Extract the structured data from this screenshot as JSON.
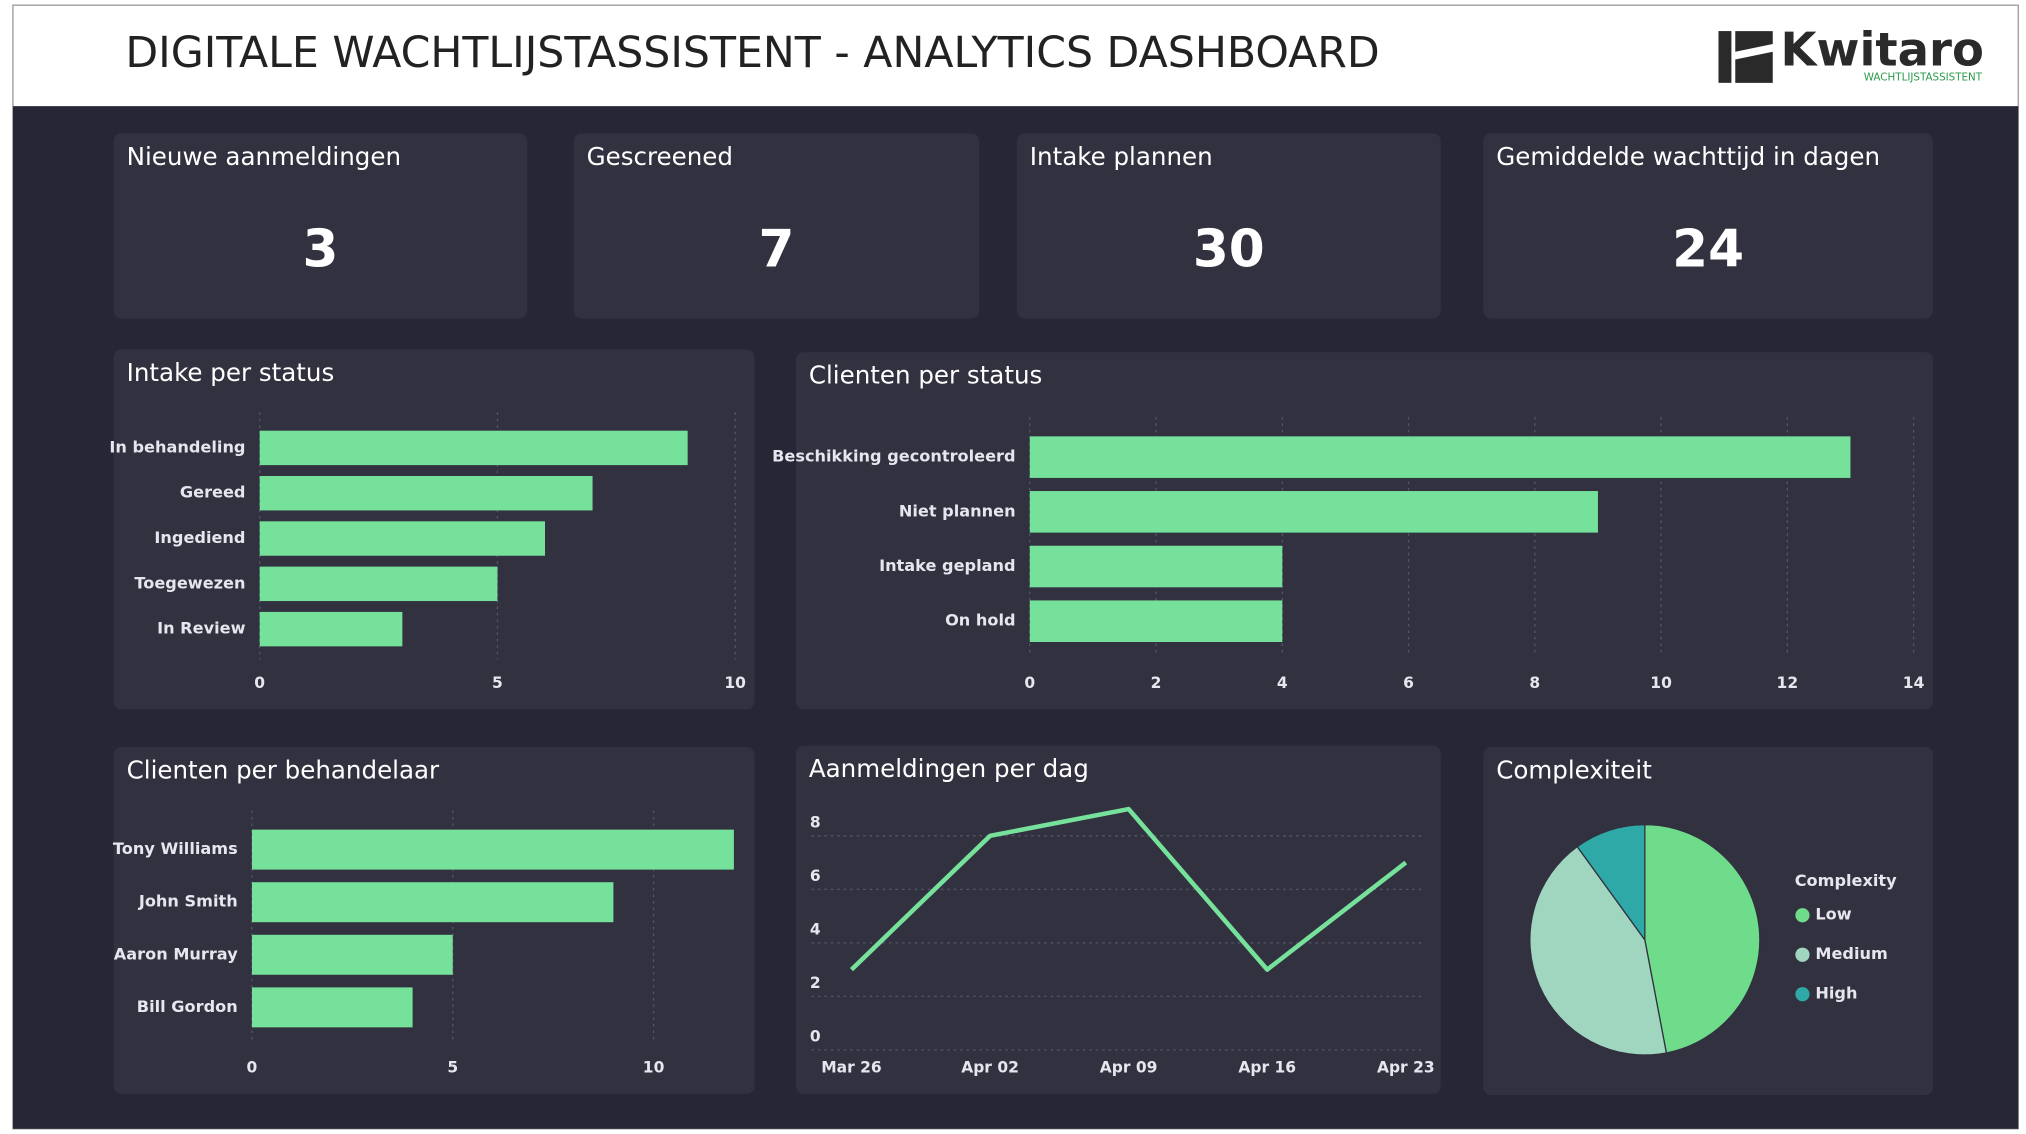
{
  "header": {
    "title": "DIGITALE WACHTLIJSTASSISTENT - ANALYTICS DASHBOARD",
    "logo": "Kwitaro",
    "logo_sub": "WACHTLIJSTASSISTENT"
  },
  "kpis": [
    {
      "label": "Nieuwe aanmeldingen",
      "value": 3
    },
    {
      "label": "Gescreened",
      "value": 7
    },
    {
      "label": "Intake plannen",
      "value": 30
    },
    {
      "label": "Gemiddelde wachttijd in dagen",
      "value": 24
    }
  ],
  "chart_data": [
    {
      "type": "bar",
      "orientation": "horizontal",
      "title": "Intake per status",
      "categories": [
        "In behandeling",
        "Gereed",
        "Ingediend",
        "Toegewezen",
        "In Review"
      ],
      "values": [
        9,
        7,
        6,
        5,
        3
      ],
      "color": "#76e19b",
      "xlim": [
        0,
        10
      ],
      "xticks": [
        0,
        5,
        10
      ],
      "grid": true
    },
    {
      "type": "bar",
      "orientation": "horizontal",
      "title": "Clienten per status",
      "categories": [
        "Beschikking gecontroleerd",
        "Niet plannen",
        "Intake gepland",
        "On hold"
      ],
      "values": [
        13,
        9,
        4,
        4
      ],
      "color": "#76e19b",
      "xlim": [
        0,
        14
      ],
      "xticks": [
        0,
        2,
        4,
        6,
        8,
        10,
        12,
        14
      ],
      "grid": true
    },
    {
      "type": "bar",
      "orientation": "horizontal",
      "title": "Clienten per behandelaar",
      "categories": [
        "Tony Williams",
        "John Smith",
        "Aaron Murray",
        "Bill Gordon"
      ],
      "values": [
        12,
        9,
        5,
        4
      ],
      "color": "#76e19b",
      "xlim": [
        0,
        12
      ],
      "xticks": [
        0,
        5,
        10
      ],
      "grid": true
    },
    {
      "type": "line",
      "title": "Aanmeldingen per dag",
      "categories": [
        "Mar 26",
        "Apr 02",
        "Apr 09",
        "Apr 16",
        "Apr 23"
      ],
      "values": [
        3,
        8,
        9,
        3,
        7
      ],
      "color": "#76e19b",
      "ylim": [
        0,
        9
      ],
      "yticks": [
        0,
        2,
        4,
        6,
        8
      ],
      "grid": true
    },
    {
      "type": "pie",
      "title": "Complexiteit",
      "legend_title": "Complexity",
      "categories": [
        "Low",
        "Medium",
        "High"
      ],
      "values": [
        47,
        43,
        10
      ],
      "colors": [
        "#6fdc8c",
        "#a0d6c0",
        "#2fa8a8"
      ],
      "legend": "right"
    }
  ]
}
